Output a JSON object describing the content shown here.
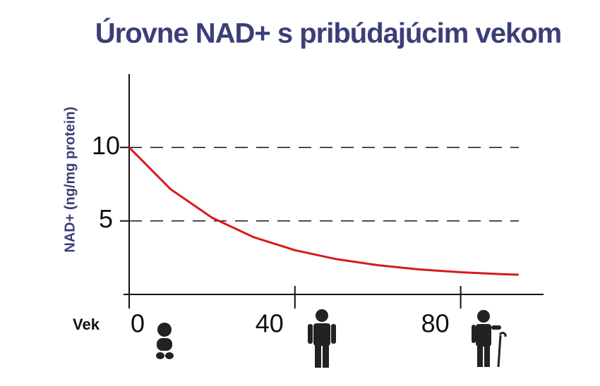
{
  "chart_data": {
    "type": "line",
    "title": "Úrovne NAD+ s pribúdajúcim vekom",
    "x_label": "Vek",
    "y_label": "NAD+ (ng/mg protein)",
    "x": [
      0,
      10,
      20,
      30,
      40,
      50,
      60,
      70,
      80,
      90,
      94
    ],
    "values": [
      10,
      7.16,
      5.22,
      3.9,
      3.01,
      2.4,
      1.99,
      1.7,
      1.51,
      1.38,
      1.34
    ],
    "color": "#d7191c",
    "xlim": [
      0,
      100
    ],
    "ylim": [
      0,
      15
    ],
    "xticks": [
      0,
      40,
      80
    ],
    "yticks": [
      5,
      10
    ],
    "grid": true
  }
}
